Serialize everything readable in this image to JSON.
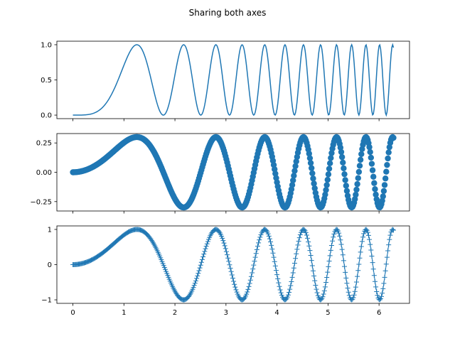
{
  "title": "Sharing both axes",
  "series_color": "#1f77b4",
  "chart_data": [
    {
      "type": "line",
      "formula": "sin(x^2)^2",
      "x_range": [
        0,
        6.283
      ],
      "samples": 400,
      "xlim": [
        -0.314,
        6.597
      ],
      "ylim": [
        -0.05,
        1.05
      ],
      "xticks": [
        "0",
        "1",
        "2",
        "3",
        "4",
        "5",
        "6"
      ],
      "yticks": [
        0.0,
        0.5,
        1.0
      ],
      "ytick_labels": [
        "0.0",
        "0.5",
        "1.0"
      ],
      "marker": "none",
      "show_xtick_labels": false
    },
    {
      "type": "scatter",
      "formula": "0.3*sin(x^2)",
      "x_range": [
        0,
        6.283
      ],
      "samples": 400,
      "xlim": [
        -0.314,
        6.597
      ],
      "ylim": [
        -0.33,
        0.33
      ],
      "xticks": [
        "0",
        "1",
        "2",
        "3",
        "4",
        "5",
        "6"
      ],
      "yticks": [
        -0.25,
        0.0,
        0.25
      ],
      "ytick_labels": [
        "−0.25",
        "0.00",
        "0.25"
      ],
      "marker": "circle",
      "show_xtick_labels": false
    },
    {
      "type": "line",
      "formula": "sin(x^2)",
      "x_range": [
        0,
        6.283
      ],
      "samples": 400,
      "xlim": [
        -0.314,
        6.597
      ],
      "ylim": [
        -1.1,
        1.1
      ],
      "xticks": [
        "0",
        "1",
        "2",
        "3",
        "4",
        "5",
        "6"
      ],
      "yticks": [
        -1,
        0,
        1
      ],
      "ytick_labels": [
        "−1",
        "0",
        "1"
      ],
      "marker": "plus",
      "show_xtick_labels": true
    }
  ]
}
